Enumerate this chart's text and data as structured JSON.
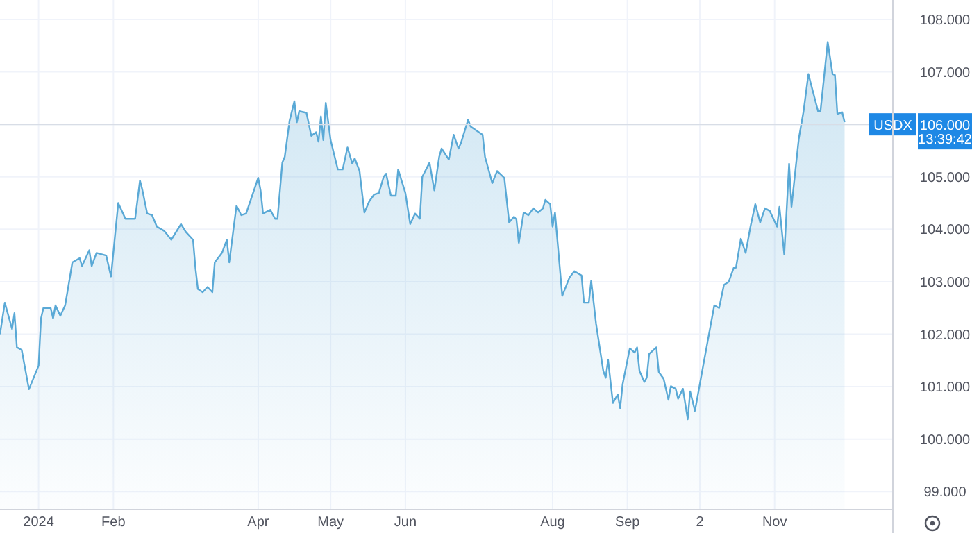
{
  "chart_data": {
    "type": "area",
    "xlim": [
      "2023-12-16",
      "2024-12-20"
    ],
    "ylim": [
      98.66,
      108.37
    ],
    "xticks": [
      {
        "value": "2024-01-01",
        "label": "2024"
      },
      {
        "value": "2024-02-01",
        "label": "Feb"
      },
      {
        "value": "2024-04-01",
        "label": "Apr"
      },
      {
        "value": "2024-05-01",
        "label": "May"
      },
      {
        "value": "2024-06-01",
        "label": "Jun"
      },
      {
        "value": "2024-08-01",
        "label": "Aug"
      },
      {
        "value": "2024-09-01",
        "label": "Sep"
      },
      {
        "value": "2024-10-01",
        "label": "2"
      },
      {
        "value": "2024-11-01",
        "label": "Nov"
      }
    ],
    "yticks": [
      {
        "value": 99,
        "label": "99.000"
      },
      {
        "value": 100,
        "label": "100.000"
      },
      {
        "value": 101,
        "label": "101.000"
      },
      {
        "value": 102,
        "label": "102.000"
      },
      {
        "value": 103,
        "label": "103.000"
      },
      {
        "value": 104,
        "label": "104.000"
      },
      {
        "value": 105,
        "label": "105.000"
      },
      {
        "value": 106,
        "label": "106.000"
      },
      {
        "value": 107,
        "label": "107.000"
      },
      {
        "value": 108,
        "label": "108.000"
      }
    ],
    "grid": true,
    "ref_lines": [
      {
        "axis": "y",
        "value": 106,
        "label": "USDX",
        "color": "#d8dde6"
      }
    ],
    "annotations": [
      "13:39:42"
    ],
    "series": [
      {
        "color": "#5aa9d6",
        "x": [
          "2023-12-16",
          "2023-12-18",
          "2023-12-21",
          "2023-12-22",
          "2023-12-23",
          "2023-12-25",
          "2023-12-28",
          "2024-01-01",
          "2024-01-02",
          "2024-01-03",
          "2024-01-06",
          "2024-01-07",
          "2024-01-08",
          "2024-01-10",
          "2024-01-12",
          "2024-01-15",
          "2024-01-18",
          "2024-01-19",
          "2024-01-22",
          "2024-01-23",
          "2024-01-25",
          "2024-01-29",
          "2024-01-31",
          "2024-02-03",
          "2024-02-05",
          "2024-02-06",
          "2024-02-08",
          "2024-02-10",
          "2024-02-12",
          "2024-02-13",
          "2024-02-15",
          "2024-02-17",
          "2024-02-19",
          "2024-02-22",
          "2024-02-25",
          "2024-02-29",
          "2024-03-02",
          "2024-03-05",
          "2024-03-06",
          "2024-03-07",
          "2024-03-09",
          "2024-03-11",
          "2024-03-13",
          "2024-03-14",
          "2024-03-17",
          "2024-03-19",
          "2024-03-20",
          "2024-03-23",
          "2024-03-25",
          "2024-03-27",
          "2024-04-01",
          "2024-04-02",
          "2024-04-03",
          "2024-04-06",
          "2024-04-08",
          "2024-04-09",
          "2024-04-11",
          "2024-04-12",
          "2024-04-14",
          "2024-04-16",
          "2024-04-17",
          "2024-04-18",
          "2024-04-21",
          "2024-04-23",
          "2024-04-25",
          "2024-04-26",
          "2024-04-27",
          "2024-04-28",
          "2024-04-29",
          "2024-05-01",
          "2024-05-04",
          "2024-05-06",
          "2024-05-08",
          "2024-05-10",
          "2024-05-11",
          "2024-05-13",
          "2024-05-15",
          "2024-05-17",
          "2024-05-19",
          "2024-05-21",
          "2024-05-23",
          "2024-05-24",
          "2024-05-26",
          "2024-05-28",
          "2024-05-29",
          "2024-06-01",
          "2024-06-03",
          "2024-06-05",
          "2024-06-07",
          "2024-06-08",
          "2024-06-11",
          "2024-06-13",
          "2024-06-15",
          "2024-06-16",
          "2024-06-19",
          "2024-06-21",
          "2024-06-23",
          "2024-06-24",
          "2024-06-27",
          "2024-06-28",
          "2024-07-03",
          "2024-07-04",
          "2024-07-07",
          "2024-07-09",
          "2024-07-12",
          "2024-07-14",
          "2024-07-16",
          "2024-07-17",
          "2024-07-18",
          "2024-07-20",
          "2024-07-22",
          "2024-07-24",
          "2024-07-26",
          "2024-07-28",
          "2024-07-29",
          "2024-07-31",
          "2024-08-01",
          "2024-08-02",
          "2024-08-05",
          "2024-08-08",
          "2024-08-10",
          "2024-08-13",
          "2024-08-14",
          "2024-08-16",
          "2024-08-17",
          "2024-08-19",
          "2024-08-22",
          "2024-08-23",
          "2024-08-24",
          "2024-08-26",
          "2024-08-28",
          "2024-08-29",
          "2024-08-30",
          "2024-09-02",
          "2024-09-04",
          "2024-09-05",
          "2024-09-06",
          "2024-09-08",
          "2024-09-09",
          "2024-09-10",
          "2024-09-13",
          "2024-09-14",
          "2024-09-16",
          "2024-09-18",
          "2024-09-19",
          "2024-09-21",
          "2024-09-22",
          "2024-09-24",
          "2024-09-26",
          "2024-09-27",
          "2024-09-29",
          "2024-10-02",
          "2024-10-04",
          "2024-10-07",
          "2024-10-09",
          "2024-10-11",
          "2024-10-13",
          "2024-10-15",
          "2024-10-16",
          "2024-10-18",
          "2024-10-20",
          "2024-10-22",
          "2024-10-24",
          "2024-10-26",
          "2024-10-28",
          "2024-10-30",
          "2024-11-02",
          "2024-11-03",
          "2024-11-05",
          "2024-11-07",
          "2024-11-08",
          "2024-11-11",
          "2024-11-13",
          "2024-11-15",
          "2024-11-16",
          "2024-11-19",
          "2024-11-20",
          "2024-11-23",
          "2024-11-25",
          "2024-11-26",
          "2024-11-27",
          "2024-11-29",
          "2024-11-30"
        ],
        "values": [
          102.0,
          102.6,
          102.1,
          102.4,
          101.75,
          101.7,
          100.95,
          101.4,
          102.3,
          102.5,
          102.5,
          102.3,
          102.55,
          102.35,
          102.55,
          103.37,
          103.45,
          103.3,
          103.6,
          103.3,
          103.55,
          103.5,
          103.1,
          104.5,
          104.3,
          104.2,
          104.2,
          104.2,
          104.93,
          104.75,
          104.3,
          104.27,
          104.05,
          103.97,
          103.8,
          104.1,
          103.95,
          103.8,
          103.26,
          102.86,
          102.8,
          102.9,
          102.8,
          103.37,
          103.55,
          103.8,
          103.37,
          104.45,
          104.27,
          104.3,
          104.98,
          104.74,
          104.3,
          104.37,
          104.2,
          104.2,
          105.27,
          105.38,
          106.07,
          106.44,
          106.04,
          106.25,
          106.22,
          105.78,
          105.85,
          105.67,
          106.15,
          105.7,
          106.41,
          105.7,
          105.14,
          105.14,
          105.56,
          105.25,
          105.35,
          105.11,
          104.32,
          104.53,
          104.66,
          104.69,
          105.0,
          105.06,
          104.64,
          104.64,
          105.14,
          104.69,
          104.1,
          104.3,
          104.2,
          105.0,
          105.27,
          104.74,
          105.38,
          105.54,
          105.33,
          105.8,
          105.54,
          105.64,
          106.09,
          105.96,
          105.8,
          105.38,
          104.88,
          105.11,
          104.98,
          104.13,
          104.24,
          104.19,
          103.74,
          104.32,
          104.27,
          104.4,
          104.32,
          104.4,
          104.56,
          104.48,
          104.05,
          104.32,
          102.73,
          103.08,
          103.2,
          103.12,
          102.6,
          102.6,
          103.02,
          102.2,
          101.3,
          101.17,
          101.51,
          100.69,
          100.85,
          100.59,
          101.04,
          101.73,
          101.65,
          101.75,
          101.3,
          101.09,
          101.17,
          101.62,
          101.75,
          101.28,
          101.15,
          100.75,
          101.01,
          100.96,
          100.77,
          100.96,
          100.38,
          100.91,
          100.54,
          101.3,
          101.8,
          102.55,
          102.5,
          102.94,
          103.0,
          103.26,
          103.27,
          103.82,
          103.55,
          104.05,
          104.48,
          104.13,
          104.4,
          104.35,
          104.05,
          104.43,
          103.52,
          105.25,
          104.43,
          105.72,
          106.25,
          106.96,
          106.78,
          106.25,
          106.25,
          107.57,
          106.96,
          106.94,
          106.2,
          106.23,
          106.04
        ]
      }
    ]
  }
}
